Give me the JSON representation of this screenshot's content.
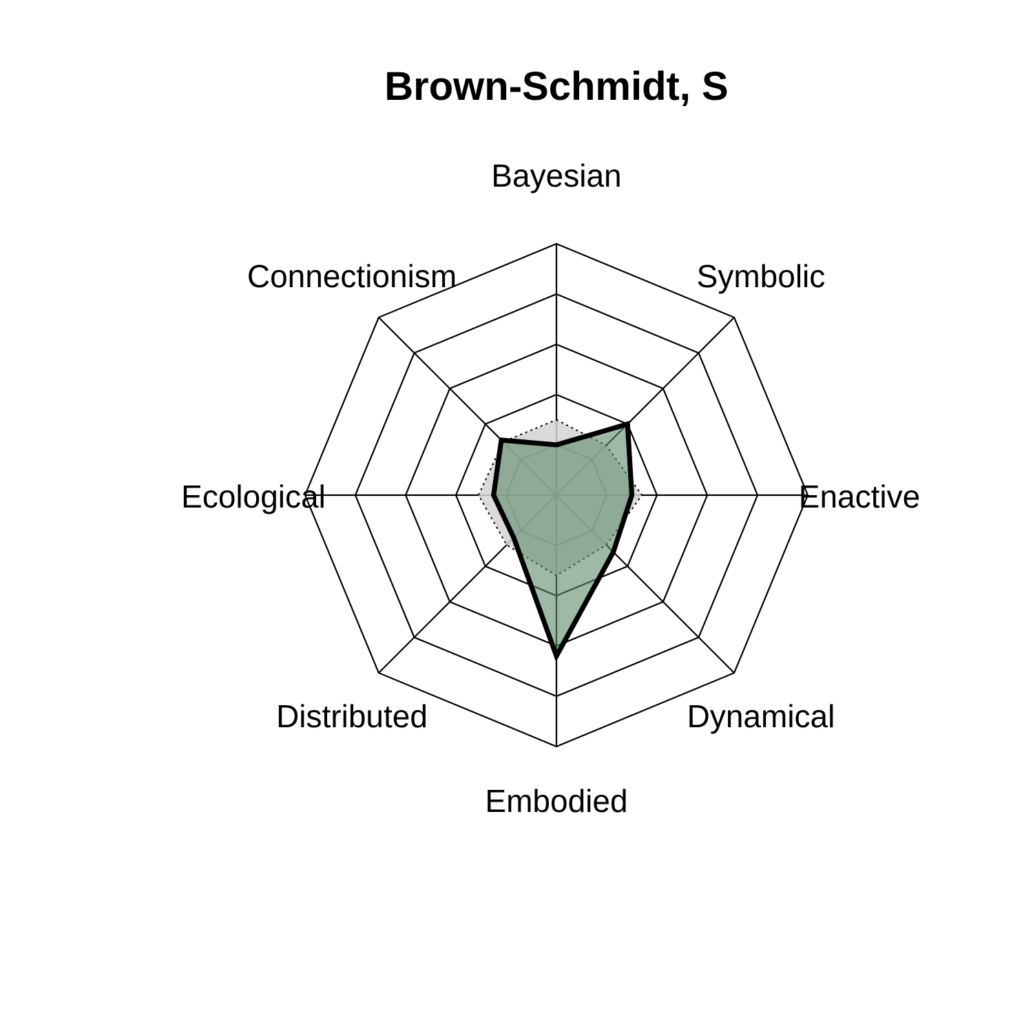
{
  "chart_data": {
    "type": "radar",
    "title": "Brown-Schmidt, S",
    "axes": [
      "Bayesian",
      "Symbolic",
      "Enactive",
      "Dynamical",
      "Embodied",
      "Distributed",
      "Ecological",
      "Connectionism"
    ],
    "range": [
      0,
      5
    ],
    "grid_levels": 5,
    "series": [
      {
        "style": "reference-dashed",
        "fill": "#d3d3d3",
        "values": [
          1.5,
          1.4,
          1.7,
          1.4,
          1.6,
          1.4,
          1.55,
          1.5
        ]
      },
      {
        "style": "subject",
        "fill": "#5e8c6a",
        "stroke": "#000000",
        "values": [
          1.0,
          2.0,
          1.5,
          1.6,
          3.2,
          1.2,
          1.25,
          1.55
        ]
      }
    ]
  }
}
